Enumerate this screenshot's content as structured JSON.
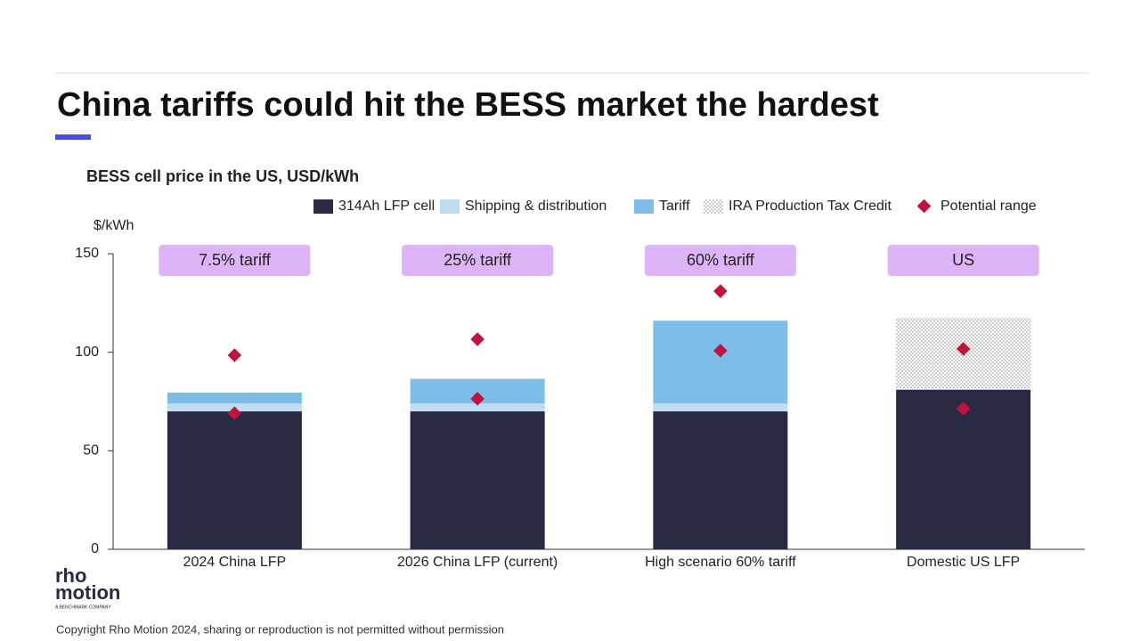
{
  "chart_data": {
    "type": "bar",
    "stacked": true,
    "title": "China tariffs could hit the BESS market the hardest",
    "subtitle": "BESS cell price in the US, USD/kWh",
    "y_label": "$/kWh",
    "categories": [
      "2024 China LFP",
      "2026 China LFP (current)",
      "High scenario 60% tariff",
      "Domestic US LFP"
    ],
    "annotations": [
      "7.5% tariff",
      "25% tariff",
      "60% tariff",
      "US"
    ],
    "annotation_color": "#dcb4f7",
    "series": [
      {
        "name": "314Ah LFP cell",
        "type": "bar",
        "color": "#272a42",
        "values": [
          70,
          70,
          70,
          81
        ]
      },
      {
        "name": "Shipping & distribution",
        "type": "bar",
        "color": "#bfdcf0",
        "values": [
          4,
          4,
          4,
          0.5
        ]
      },
      {
        "name": "Tariff",
        "type": "bar",
        "color": "#7dbde8",
        "values": [
          5.5,
          12.5,
          42,
          null
        ]
      },
      {
        "name": "IRA Production Tax Credit",
        "type": "bar",
        "color": "#555555",
        "pattern": "dots",
        "values": [
          null,
          null,
          null,
          36
        ]
      },
      {
        "name": "Potential range",
        "type": "scatter",
        "color": "#c0143c",
        "values": [
          [
            69,
            98.5
          ],
          [
            76.4,
            106.6
          ],
          [
            100.8,
            131
          ],
          [
            71.4,
            101.7
          ]
        ]
      }
    ],
    "ylim": [
      0,
      150
    ],
    "yticks": [
      0,
      50,
      100,
      150
    ],
    "grid": false
  },
  "footer": {
    "logo_top": "rho",
    "logo_bottom": "motion",
    "logo_tagline": "A BENCHMARK COMPANY",
    "copyright": "Copyright Rho Motion 2024, sharing or reproduction is not permitted without permission"
  }
}
